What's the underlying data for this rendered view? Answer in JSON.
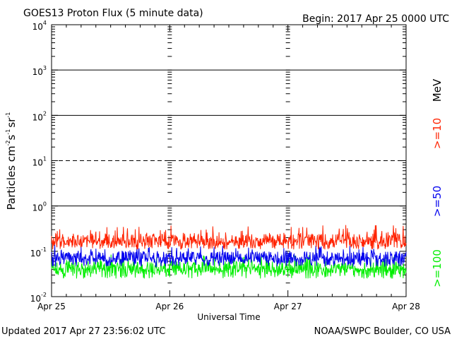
{
  "chart_data": {
    "type": "line",
    "title": "GOES13 Proton Flux (5 minute data)",
    "begin": "Begin: 2017 Apr 25 0000 UTC",
    "xlabel": "Universal Time",
    "ylabel": "Particles cm",
    "ylabel_parts": {
      "cm_exp": "-2",
      "s": "s",
      "s_exp": "-1",
      "sr": "sr",
      "sr_exp": "-1"
    },
    "y_scale": "log",
    "ylim": [
      0.01,
      10000
    ],
    "y_ticks": [
      {
        "base": "10",
        "exp": "-2"
      },
      {
        "base": "10",
        "exp": "-1"
      },
      {
        "base": "10",
        "exp": "0"
      },
      {
        "base": "10",
        "exp": "1"
      },
      {
        "base": "10",
        "exp": "2"
      },
      {
        "base": "10",
        "exp": "3"
      },
      {
        "base": "10",
        "exp": "4"
      }
    ],
    "x_ticks": [
      "Apr 25",
      "Apr 26",
      "Apr 27",
      "Apr 28"
    ],
    "xlim_days": [
      0,
      3
    ],
    "threshold_line": {
      "y": 10,
      "style": "dashed"
    },
    "solid_lines": [
      1,
      100,
      1000
    ],
    "unit": "MeV",
    "series": [
      {
        "name": ">=10",
        "color": "#ff2200",
        "typical": 0.18,
        "low": 0.11,
        "high": 0.38
      },
      {
        "name": ">=50",
        "color": "#0000ee",
        "typical": 0.075,
        "low": 0.045,
        "high": 0.14
      },
      {
        "name": ">=100",
        "color": "#00ee00",
        "typical": 0.045,
        "low": 0.025,
        "high": 0.085
      }
    ]
  },
  "footer": {
    "updated": "Updated 2017 Apr 27 23:56:02 UTC",
    "source": "NOAA/SWPC Boulder, CO USA"
  }
}
